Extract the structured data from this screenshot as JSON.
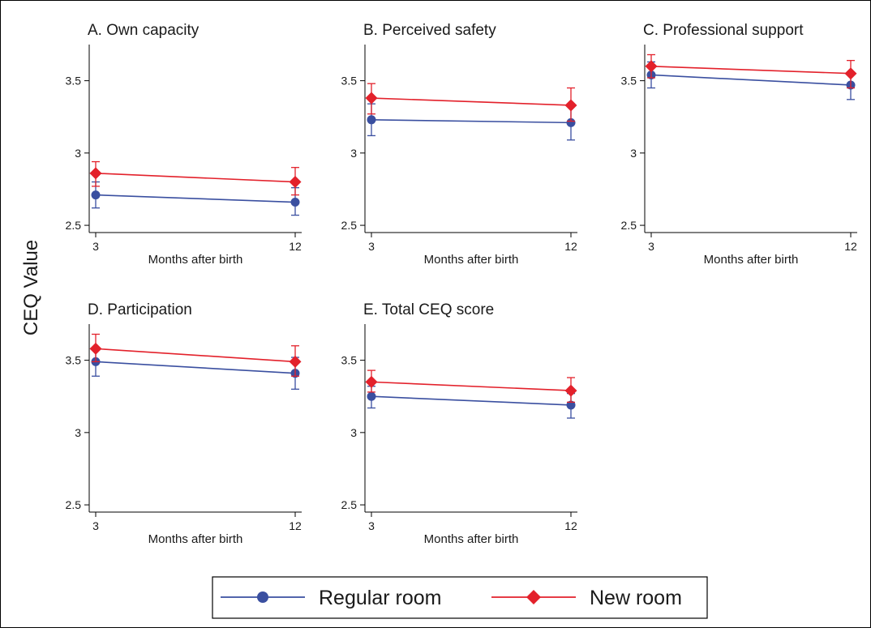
{
  "figure": {
    "ylabel": "CEQ Value"
  },
  "legend": {
    "entries": [
      {
        "label": "Regular room",
        "color": "#3a4fa0",
        "marker": "circle"
      },
      {
        "label": "New room",
        "color": "#e3212b",
        "marker": "diamond"
      }
    ]
  },
  "chart_data": [
    {
      "type": "line",
      "title": "A. Own capacity",
      "xlabel": "Months after birth",
      "categories": [
        "3",
        "12"
      ],
      "ylim": [
        2.45,
        3.75
      ],
      "yticks": [
        "2.5",
        "3",
        "3.5"
      ],
      "series": [
        {
          "name": "Regular room",
          "values": [
            2.71,
            2.66
          ],
          "ci_low": [
            2.62,
            2.57
          ],
          "ci_high": [
            2.8,
            2.76
          ]
        },
        {
          "name": "New room",
          "values": [
            2.86,
            2.8
          ],
          "ci_low": [
            2.77,
            2.71
          ],
          "ci_high": [
            2.94,
            2.9
          ]
        }
      ]
    },
    {
      "type": "line",
      "title": "B. Perceived safety",
      "xlabel": "Months after birth",
      "categories": [
        "3",
        "12"
      ],
      "ylim": [
        2.45,
        3.75
      ],
      "yticks": [
        "2.5",
        "3",
        "3.5"
      ],
      "series": [
        {
          "name": "Regular room",
          "values": [
            3.23,
            3.21
          ],
          "ci_low": [
            3.12,
            3.09
          ],
          "ci_high": [
            3.34,
            3.32
          ]
        },
        {
          "name": "New room",
          "values": [
            3.38,
            3.33
          ],
          "ci_low": [
            3.27,
            3.22
          ],
          "ci_high": [
            3.48,
            3.45
          ]
        }
      ]
    },
    {
      "type": "line",
      "title": "C. Professional support",
      "xlabel": "Months after birth",
      "categories": [
        "3",
        "12"
      ],
      "ylim": [
        2.45,
        3.75
      ],
      "yticks": [
        "2.5",
        "3",
        "3.5"
      ],
      "series": [
        {
          "name": "Regular room",
          "values": [
            3.54,
            3.47
          ],
          "ci_low": [
            3.45,
            3.37
          ],
          "ci_high": [
            3.63,
            3.56
          ]
        },
        {
          "name": "New room",
          "values": [
            3.6,
            3.55
          ],
          "ci_low": [
            3.52,
            3.45
          ],
          "ci_high": [
            3.68,
            3.64
          ]
        }
      ]
    },
    {
      "type": "line",
      "title": "D. Participation",
      "xlabel": "Months after birth",
      "categories": [
        "3",
        "12"
      ],
      "ylim": [
        2.45,
        3.75
      ],
      "yticks": [
        "2.5",
        "3",
        "3.5"
      ],
      "series": [
        {
          "name": "Regular room",
          "values": [
            3.49,
            3.41
          ],
          "ci_low": [
            3.39,
            3.3
          ],
          "ci_high": [
            3.58,
            3.52
          ]
        },
        {
          "name": "New room",
          "values": [
            3.58,
            3.49
          ],
          "ci_low": [
            3.49,
            3.39
          ],
          "ci_high": [
            3.68,
            3.6
          ]
        }
      ]
    },
    {
      "type": "line",
      "title": "E. Total CEQ score",
      "xlabel": "Months after birth",
      "categories": [
        "3",
        "12"
      ],
      "ylim": [
        2.45,
        3.75
      ],
      "yticks": [
        "2.5",
        "3",
        "3.5"
      ],
      "series": [
        {
          "name": "Regular room",
          "values": [
            3.25,
            3.19
          ],
          "ci_low": [
            3.17,
            3.1
          ],
          "ci_high": [
            3.32,
            3.27
          ]
        },
        {
          "name": "New room",
          "values": [
            3.35,
            3.29
          ],
          "ci_low": [
            3.28,
            3.21
          ],
          "ci_high": [
            3.43,
            3.38
          ]
        }
      ]
    }
  ]
}
